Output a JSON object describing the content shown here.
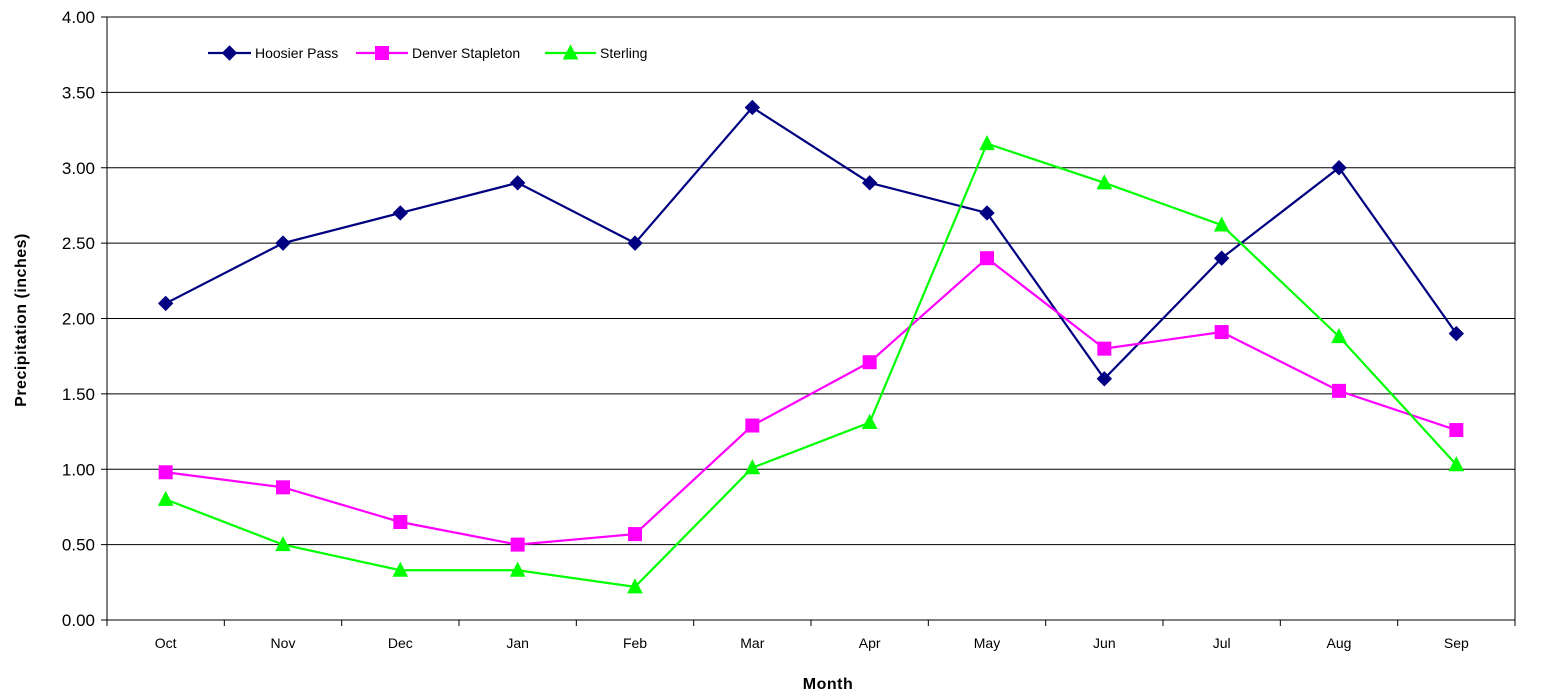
{
  "chart_data": {
    "type": "line",
    "title": "",
    "xlabel": "Month",
    "ylabel": "Precipitation (inches)",
    "ylim": [
      0,
      4
    ],
    "y_ticks": [
      "0.00",
      "0.50",
      "1.00",
      "1.50",
      "2.00",
      "2.50",
      "3.00",
      "3.50",
      "4.00"
    ],
    "categories": [
      "Oct",
      "Nov",
      "Dec",
      "Jan",
      "Feb",
      "Mar",
      "Apr",
      "May",
      "Jun",
      "Jul",
      "Aug",
      "Sep"
    ],
    "grid": true,
    "legend_position": "top-left",
    "series": [
      {
        "name": "Hoosier Pass",
        "color": "#000080",
        "marker": "diamond",
        "values": [
          2.1,
          2.5,
          2.7,
          2.9,
          2.5,
          3.4,
          2.9,
          2.7,
          1.6,
          2.4,
          3.0,
          1.9
        ]
      },
      {
        "name": "Denver Stapleton",
        "color": "#FF00FF",
        "marker": "square",
        "values": [
          0.98,
          0.88,
          0.65,
          0.5,
          0.57,
          1.29,
          1.71,
          2.4,
          1.8,
          1.91,
          1.52,
          1.26
        ]
      },
      {
        "name": "Sterling",
        "color": "#00FF00",
        "marker": "triangle",
        "values": [
          0.8,
          0.5,
          0.33,
          0.33,
          0.22,
          1.01,
          1.31,
          3.16,
          2.9,
          2.62,
          1.88,
          1.03
        ]
      }
    ]
  }
}
